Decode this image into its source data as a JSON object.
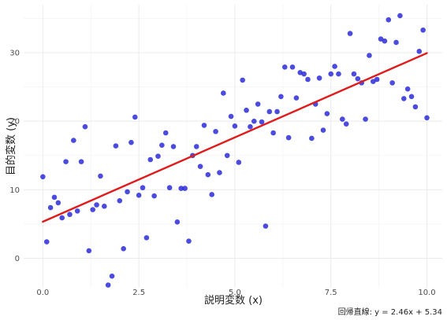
{
  "chart_data": {
    "type": "scatter",
    "title": "",
    "xlabel": "説明変数 (x)",
    "ylabel": "目的変数 (y)",
    "caption": "回帰直線: y = 2.46x + 5.34",
    "xlim": [
      -0.5,
      10.4
    ],
    "ylim": [
      -4.3,
      37.0
    ],
    "xticks": [
      0.0,
      2.5,
      5.0,
      7.5,
      10.0
    ],
    "xtick_labels": [
      "0.0",
      "2.5",
      "5.0",
      "7.5",
      "10.0"
    ],
    "yticks": [
      0,
      10,
      20,
      30
    ],
    "ytick_labels": [
      "0",
      "10",
      "20",
      "30"
    ],
    "grid": true,
    "series": [
      {
        "kind": "points",
        "color": "#2b2bd9",
        "x": [
          0.0,
          0.1,
          0.2,
          0.3,
          0.4,
          0.5,
          0.6,
          0.7,
          0.8,
          0.9,
          1.0,
          1.1,
          1.2,
          1.3,
          1.4,
          1.5,
          1.6,
          1.7,
          1.8,
          1.9,
          2.0,
          2.1,
          2.2,
          2.3,
          2.4,
          2.5,
          2.6,
          2.7,
          2.8,
          2.9,
          3.0,
          3.1,
          3.2,
          3.3,
          3.4,
          3.5,
          3.6,
          3.7,
          3.8,
          3.9,
          4.0,
          4.1,
          4.2,
          4.3,
          4.4,
          4.5,
          4.6,
          4.7,
          4.8,
          4.9,
          5.0,
          5.1,
          5.2,
          5.3,
          5.4,
          5.5,
          5.6,
          5.7,
          5.8,
          5.9,
          6.0,
          6.1,
          6.2,
          6.3,
          6.4,
          6.5,
          6.6,
          6.7,
          6.8,
          6.9,
          7.0,
          7.1,
          7.2,
          7.3,
          7.4,
          7.5,
          7.6,
          7.7,
          7.8,
          7.9,
          8.0,
          8.1,
          8.2,
          8.3,
          8.4,
          8.5,
          8.6,
          8.7,
          8.8,
          8.9,
          9.0,
          9.1,
          9.2,
          9.3,
          9.4,
          9.5,
          9.6,
          9.7,
          9.8,
          9.9,
          10.0
        ],
        "y": [
          11.9,
          2.4,
          7.4,
          8.9,
          8.1,
          5.9,
          14.1,
          6.4,
          17.2,
          6.9,
          14.1,
          19.2,
          1.1,
          7.1,
          7.8,
          12.0,
          7.6,
          -3.9,
          -2.6,
          16.4,
          8.4,
          1.4,
          9.7,
          16.9,
          20.6,
          9.2,
          10.3,
          3.0,
          14.4,
          9.1,
          14.9,
          16.5,
          18.3,
          10.3,
          16.3,
          5.3,
          10.2,
          10.2,
          2.5,
          15.0,
          16.3,
          13.4,
          19.4,
          12.2,
          9.3,
          18.5,
          12.5,
          24.1,
          15.0,
          20.7,
          19.3,
          14.0,
          26.0,
          21.6,
          19.2,
          20.0,
          22.5,
          19.9,
          4.7,
          21.4,
          18.3,
          21.4,
          23.6,
          27.9,
          17.6,
          27.9,
          23.4,
          27.1,
          26.9,
          26.1,
          17.5,
          22.5,
          26.3,
          18.7,
          21.1,
          26.9,
          28.0,
          26.9,
          20.3,
          19.6,
          32.8,
          26.9,
          26.2,
          25.6,
          20.3,
          29.6,
          25.8,
          26.1,
          32.0,
          31.7,
          34.8,
          25.6,
          31.5,
          35.4,
          23.3,
          24.7,
          23.6,
          22.1,
          30.2,
          33.3,
          20.5
        ]
      },
      {
        "kind": "line",
        "color": "#e01b1b",
        "slope": 2.46,
        "intercept": 5.34,
        "x": [
          0.0,
          10.0
        ],
        "y": [
          5.34,
          29.94
        ]
      }
    ]
  }
}
